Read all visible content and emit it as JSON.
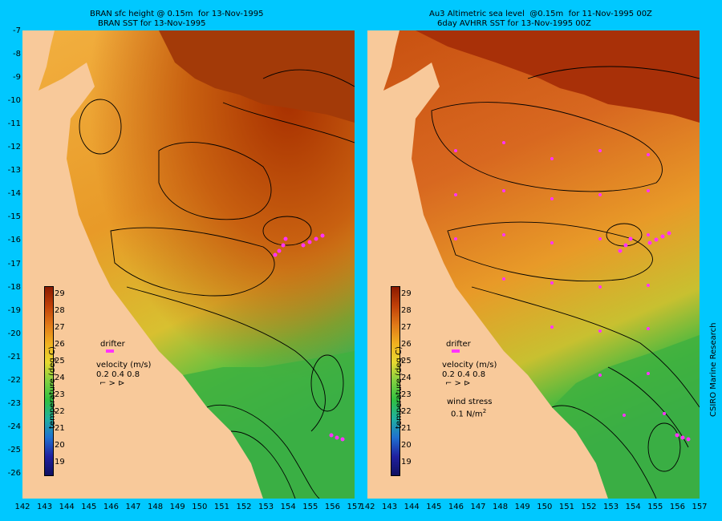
{
  "left_panel": {
    "title_line1": "BRAN sfc height @ 0.15m  for 13-Nov-1995",
    "title_line2": "BRAN SST for 13-Nov-1995",
    "colorbar_title": "temperature (deg C)",
    "drifter_label": "drifter",
    "velocity_label": "velocity (m/s)",
    "velocity_scale": "0.2 0.4 0.8"
  },
  "right_panel": {
    "title_line1": "Au3 Altimetric sea level  @0.15m  for 11-Nov-1995 00Z",
    "title_line2": "6day AVHRR SST for 13-Nov-1995 00Z",
    "colorbar_title": "temperature (deg C)",
    "drifter_label": "drifter",
    "velocity_label": "velocity (m/s)",
    "velocity_scale": "0.2 0.4 0.8",
    "wind_label": "wind stress",
    "wind_scale": "0.1 N/m",
    "wind_scale_sup": "2"
  },
  "latitude_ticks": [
    "-7",
    "-8",
    "-9",
    "-10",
    "-11",
    "-12",
    "-13",
    "-14",
    "-15",
    "-16",
    "-17",
    "-18",
    "-19",
    "-20",
    "-21",
    "-22",
    "-23",
    "-24",
    "-25",
    "-26"
  ],
  "longitude_ticks_left": [
    "142",
    "143",
    "144",
    "145",
    "146",
    "147",
    "148",
    "149",
    "150",
    "151",
    "152",
    "153",
    "154",
    "155",
    "156",
    "157"
  ],
  "longitude_ticks_right": [
    "142",
    "143",
    "144",
    "145",
    "146",
    "147",
    "148",
    "149",
    "150",
    "151",
    "152",
    "153",
    "154",
    "155",
    "156",
    "157"
  ],
  "colorbar_ticks": [
    "29",
    "28",
    "27",
    "26",
    "25",
    "24",
    "23",
    "22",
    "21",
    "20",
    "19"
  ],
  "credit": "CSIRO Marine Research",
  "colors": {
    "background": "#00c8ff",
    "land": "#f8c99a",
    "drifter": "#ff33ff",
    "warm": "#a83000",
    "mid": "#f0a020",
    "cool": "#30b830"
  }
}
